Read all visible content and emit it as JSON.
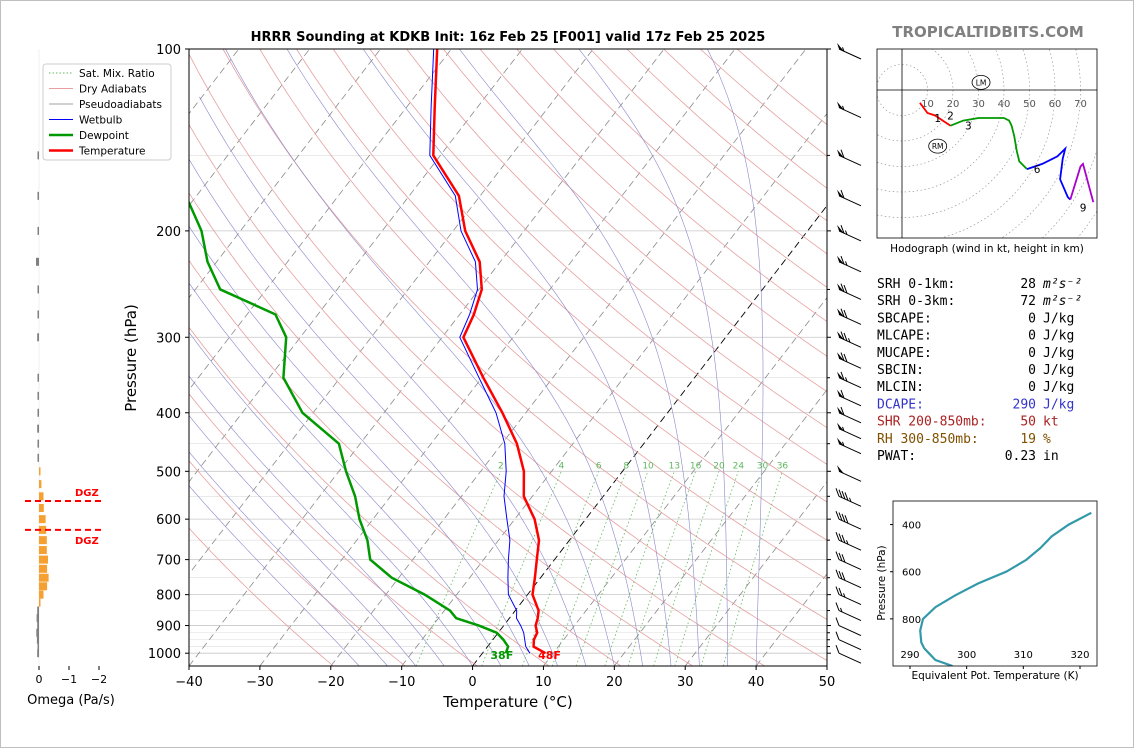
{
  "title": "HRRR Sounding at KDKB Init: 16z Feb 25 [F001] valid 17z Feb 25 2025",
  "brand": "TROPICALTIDBITS.COM",
  "colors": {
    "temperature": "#ff0000",
    "dewpoint": "#009900",
    "wetbulb": "#0000ff",
    "dry_adiabat": "#e6a0a0",
    "pseudoadiabat": "#a0a0a0",
    "mixing_ratio": "#5fb85f",
    "omega_neg": "#f5a030",
    "omega_pos": "#808080",
    "theta_e": "#3399aa",
    "dcape": "#3333cc",
    "shear": "#aa2222",
    "rh": "#805000"
  },
  "chart_data": [
    {
      "type": "line",
      "name": "skewt",
      "xlabel": "Temperature (°C)",
      "ylabel": "Pressure (hPa)",
      "xlim": [
        -40,
        50
      ],
      "ylim": [
        1050,
        100
      ],
      "y_scale": "log",
      "x_ticks": [
        "−40",
        "−30",
        "−20",
        "−10",
        "0",
        "10",
        "20",
        "30",
        "40",
        "50"
      ],
      "y_ticks": [
        "100",
        "200",
        "300",
        "400",
        "500",
        "600",
        "700",
        "800",
        "900",
        "1000"
      ],
      "legend": [
        "Sat. Mix. Ratio",
        "Dry Adiabats",
        "Pseudoadiabats",
        "Wetbulb",
        "Dewpoint",
        "Temperature"
      ],
      "legend_position": "top-left",
      "mixing_ratio_labels": [
        "2",
        "4",
        "6",
        "8",
        "10",
        "13",
        "16",
        "20",
        "24",
        "30",
        "36"
      ],
      "surface_temp_label": "48F",
      "surface_dewpoint_label": "38F",
      "series": [
        {
          "name": "Temperature",
          "p": [
            1000,
            975,
            950,
            925,
            900,
            875,
            850,
            800,
            750,
            700,
            650,
            600,
            550,
            500,
            450,
            400,
            350,
            300,
            275,
            250,
            225,
            200,
            175,
            150,
            125,
            100
          ],
          "t": [
            8.9,
            6.5,
            5.8,
            5.5,
            4.5,
            4.0,
            3.3,
            0.7,
            -0.8,
            -2.5,
            -4.3,
            -7.2,
            -11.2,
            -13.9,
            -17.9,
            -23.3,
            -29.8,
            -37.0,
            -38.0,
            -39.6,
            -42.9,
            -48.3,
            -53.0,
            -61.0,
            -66.0,
            -72.0
          ]
        },
        {
          "name": "Dewpoint",
          "p": [
            1000,
            975,
            950,
            925,
            900,
            875,
            850,
            800,
            750,
            700,
            650,
            600,
            550,
            500,
            450,
            400,
            350,
            300,
            275,
            250,
            225,
            200,
            175,
            150,
            125,
            100
          ],
          "td": [
            3.3,
            2.9,
            1.5,
            -0.2,
            -3.5,
            -7.5,
            -9.2,
            -14.5,
            -21.0,
            -26.0,
            -28.5,
            -31.9,
            -35.0,
            -39.0,
            -43.0,
            -51.5,
            -58.0,
            -62.0,
            -66.0,
            -76.5,
            -81.3,
            -85.5,
            -91.5,
            -97.5,
            -102.0,
            -109.0
          ]
        },
        {
          "name": "Wetbulb",
          "p": [
            1000,
            975,
            950,
            925,
            900,
            875,
            850,
            800,
            750,
            700,
            650,
            600,
            550,
            500,
            450,
            400,
            350,
            300,
            275,
            250,
            225,
            200,
            175,
            150,
            125,
            100
          ],
          "tw": [
            6.7,
            5.4,
            4.5,
            3.6,
            2.4,
            1.0,
            0.2,
            -2.7,
            -4.6,
            -6.5,
            -8.4,
            -11.1,
            -14.0,
            -16.4,
            -19.6,
            -24.2,
            -30.4,
            -37.5,
            -38.6,
            -40.2,
            -43.5,
            -48.9,
            -53.5,
            -61.5,
            -66.5,
            -72.5
          ]
        }
      ]
    },
    {
      "type": "bar",
      "name": "omega",
      "xlabel": "Omega (Pa/s)",
      "x_ticks": [
        "0",
        "−1",
        "−2"
      ],
      "dgz_label": "DGZ",
      "dgz_pressures": [
        560,
        625
      ],
      "p": [
        1000,
        975,
        950,
        925,
        900,
        875,
        850,
        825,
        800,
        775,
        750,
        725,
        700,
        675,
        650,
        625,
        600,
        575,
        550,
        525,
        500,
        475,
        450,
        425,
        400,
        375,
        350,
        300,
        275,
        250,
        225,
        200,
        175,
        150
      ],
      "omega": [
        0.06,
        0.05,
        0.07,
        0.09,
        0.06,
        0.08,
        0.06,
        -0.04,
        -0.15,
        -0.27,
        -0.32,
        -0.27,
        -0.3,
        -0.26,
        -0.26,
        -0.24,
        -0.22,
        -0.16,
        -0.15,
        -0.08,
        -0.02,
        0.0,
        0.05,
        0.06,
        0.05,
        0.04,
        0.02,
        0.06,
        0.03,
        0.04,
        0.1,
        0.05,
        0.02,
        0.02
      ]
    },
    {
      "type": "line",
      "name": "hodograph",
      "xlabel": "Hodograph (wind in kt, height in km)",
      "ring_labels": [
        "10",
        "20",
        "30",
        "40",
        "50",
        "60",
        "70"
      ],
      "motion_labels": [
        "LM",
        "RM"
      ],
      "height_labels": [
        "1",
        "2",
        "3",
        "6",
        "9"
      ],
      "segments": [
        {
          "color": "#ff0000",
          "u": [
            7,
            10,
            13,
            16,
            19
          ],
          "v": [
            -5,
            -9,
            -10,
            -12,
            -14
          ]
        },
        {
          "color": "#009900",
          "u": [
            19,
            24,
            30,
            36,
            40,
            42,
            43,
            44,
            45,
            46,
            49
          ],
          "v": [
            -14,
            -12,
            -11,
            -11,
            -11,
            -12,
            -14,
            -18,
            -24,
            -28,
            -31
          ]
        },
        {
          "color": "#0000ff",
          "u": [
            49,
            55,
            59,
            61,
            64,
            63,
            62,
            65,
            66
          ],
          "v": [
            -31,
            -29,
            -27,
            -26,
            -23,
            -27,
            -35,
            -42,
            -43
          ]
        },
        {
          "color": "#aa00cc",
          "u": [
            66,
            70,
            71,
            75
          ],
          "v": [
            -43,
            -30,
            -29,
            -44
          ]
        }
      ],
      "lm": {
        "u": 31,
        "v": 3
      },
      "rm": {
        "u": 14,
        "v": -22
      }
    },
    {
      "type": "line",
      "name": "theta_e",
      "xlabel": "Equivalent Pot. Temperature (K)",
      "ylabel": "Pressure (hPa)",
      "x_ticks": [
        "290",
        "300",
        "310",
        "320"
      ],
      "y_ticks": [
        "400",
        "600",
        "800"
      ],
      "xlim": [
        287,
        323
      ],
      "ylim": [
        1000,
        300
      ],
      "theta_e": [
        297.5,
        294.5,
        293.5,
        292.5,
        292.0,
        291.8,
        292.3,
        294.5,
        298.0,
        302.0,
        307.0,
        310.5,
        313.0,
        315.0,
        318.0,
        322.0
      ],
      "p": [
        1000,
        975,
        950,
        925,
        900,
        850,
        800,
        750,
        700,
        650,
        600,
        550,
        500,
        450,
        400,
        350
      ]
    }
  ],
  "params": [
    {
      "label": "SRH 0-1km:",
      "value": "28",
      "unit": "m²s⁻²",
      "color": "#000000"
    },
    {
      "label": "SRH 0-3km:",
      "value": "72",
      "unit": "m²s⁻²",
      "color": "#000000"
    },
    {
      "label": "SBCAPE:",
      "value": "0",
      "unit": "J/kg",
      "color": "#000000"
    },
    {
      "label": "MLCAPE:",
      "value": "0",
      "unit": "J/kg",
      "color": "#000000"
    },
    {
      "label": "MUCAPE:",
      "value": "0",
      "unit": "J/kg",
      "color": "#000000"
    },
    {
      "label": "SBCIN:",
      "value": "0",
      "unit": "J/kg",
      "color": "#000000"
    },
    {
      "label": "MLCIN:",
      "value": "0",
      "unit": "J/kg",
      "color": "#000000"
    },
    {
      "label": "DCAPE:",
      "value": "290",
      "unit": "J/kg",
      "color": "#3333cc"
    },
    {
      "label": "SHR 200-850mb:",
      "value": "50",
      "unit": "kt",
      "color": "#aa2222"
    },
    {
      "label": "RH 300-850mb:",
      "value": "19",
      "unit": "%",
      "color": "#805000"
    },
    {
      "label": "PWAT:",
      "value": "0.23",
      "unit": "in",
      "color": "#000000"
    }
  ],
  "wind_barbs": {
    "p": [
      100,
      125,
      150,
      175,
      200,
      225,
      250,
      275,
      300,
      325,
      350,
      375,
      400,
      425,
      450,
      500,
      550,
      600,
      650,
      700,
      750,
      800,
      850,
      900,
      950,
      1000
    ],
    "spd": [
      55,
      55,
      60,
      60,
      65,
      65,
      70,
      70,
      75,
      70,
      65,
      60,
      60,
      55,
      55,
      50,
      45,
      40,
      35,
      30,
      30,
      25,
      15,
      12,
      10,
      10
    ]
  }
}
